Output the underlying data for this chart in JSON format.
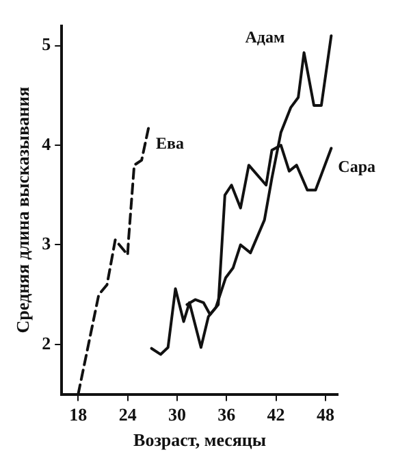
{
  "chart_data": {
    "type": "line",
    "xlabel": "Возраст, месяцы",
    "ylabel": "Средняя длина высказывания",
    "xlim": [
      16,
      49.5
    ],
    "ylim": [
      1.5,
      5.2
    ],
    "xticks": [
      18,
      24,
      30,
      36,
      42,
      48
    ],
    "yticks": [
      2,
      3,
      4,
      5
    ],
    "grid": false,
    "legend": false,
    "marker": "none",
    "series": [
      {
        "name": "Ева",
        "color": "#111111",
        "line_style": "dashed",
        "x": [
          18,
          19,
          20.5,
          21.5,
          22.5,
          23.5,
          24,
          24.1,
          24.8,
          25.7,
          26.6
        ],
        "values": [
          1.5,
          1.9,
          2.5,
          2.6,
          3.05,
          2.95,
          2.9,
          3.04,
          3.8,
          3.85,
          4.2
        ]
      },
      {
        "name": "Адам",
        "color": "#111111",
        "line_style": "solid",
        "x": [
          26.9,
          28,
          28.9,
          29.8,
          30.8,
          31.5,
          32.9,
          33.8,
          34.7,
          35.9,
          36.8,
          37.7,
          38.9,
          40.6,
          41.5,
          42.6,
          43.8,
          44.7,
          45.4,
          46.6,
          47.5,
          48.7
        ],
        "values": [
          1.96,
          1.9,
          1.97,
          2.56,
          2.23,
          2.42,
          1.97,
          2.28,
          2.37,
          2.67,
          2.77,
          3.0,
          2.92,
          3.25,
          3.67,
          4.13,
          4.38,
          4.48,
          4.93,
          4.4,
          4.4,
          5.1
        ]
      },
      {
        "name": "Сара",
        "color": "#111111",
        "line_style": "solid",
        "x": [
          31.2,
          32.2,
          33.2,
          34,
          35,
          35.8,
          36.6,
          37.7,
          38.7,
          40.8,
          41.5,
          42.6,
          43.6,
          44.5,
          45.8,
          46.8,
          48.7
        ],
        "values": [
          2.4,
          2.45,
          2.42,
          2.3,
          2.4,
          3.5,
          3.6,
          3.37,
          3.8,
          3.6,
          3.95,
          4.0,
          3.74,
          3.8,
          3.55,
          3.55,
          3.97
        ]
      }
    ]
  }
}
